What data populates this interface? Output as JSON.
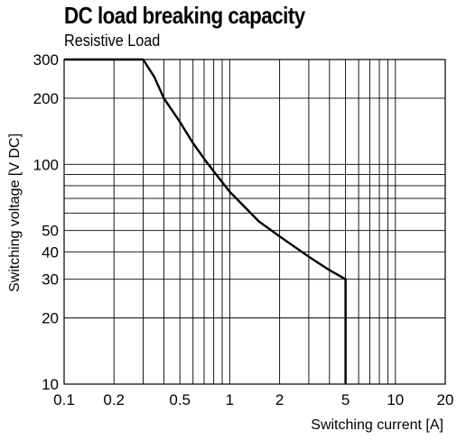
{
  "chart_data": {
    "type": "line",
    "title": "DC load breaking capacity",
    "subtitle": "Resistive Load",
    "xlabel": "Switching current [A]",
    "ylabel": "Switching voltage [V DC]",
    "x_scale": "log",
    "y_scale": "log",
    "xlim": [
      0.1,
      20
    ],
    "ylim": [
      10,
      300
    ],
    "x_ticks": [
      0.1,
      0.2,
      0.5,
      1,
      2,
      5,
      10,
      20
    ],
    "x_tick_labels": [
      "0.1",
      "0.2",
      "0.5",
      "1",
      "2",
      "5",
      "10",
      "20"
    ],
    "y_ticks": [
      10,
      20,
      30,
      40,
      50,
      100,
      200,
      300
    ],
    "y_tick_labels": [
      "10",
      "20",
      "30",
      "40",
      "50",
      "100",
      "200",
      "300"
    ],
    "x_gridlines": [
      0.1,
      0.2,
      0.3,
      0.4,
      0.5,
      0.6,
      0.7,
      0.8,
      0.9,
      1,
      2,
      3,
      4,
      5,
      6,
      7,
      8,
      9,
      10,
      20
    ],
    "y_gridlines": [
      10,
      20,
      30,
      40,
      50,
      60,
      70,
      80,
      90,
      100,
      200,
      300
    ],
    "grid": true,
    "series": [
      {
        "x": [
          0.1,
          0.3,
          0.35,
          0.4,
          0.5,
          0.6,
          0.7,
          0.8,
          1,
          1.5,
          2,
          3,
          4,
          5,
          5,
          5
        ],
        "y": [
          300,
          300,
          250,
          200,
          156,
          125,
          106,
          93,
          75,
          55,
          47,
          38,
          33,
          30,
          20,
          10
        ]
      }
    ]
  }
}
